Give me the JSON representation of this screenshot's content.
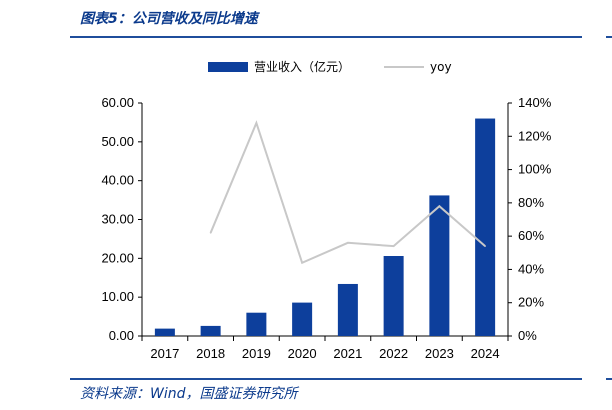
{
  "figure": {
    "title": "图表5：公司营收及同比增速",
    "source": "资料来源：Wind，国盛证券研究所"
  },
  "chart_data": {
    "type": "bar",
    "categories": [
      "2017",
      "2018",
      "2019",
      "2020",
      "2021",
      "2022",
      "2023",
      "2024"
    ],
    "series": [
      {
        "name": "营业收入（亿元）",
        "type": "bar",
        "axis": "left",
        "color": "#0d3f9c",
        "values": [
          1.9,
          2.6,
          6.0,
          8.6,
          13.4,
          20.6,
          36.2,
          56.0
        ]
      },
      {
        "name": "yoy",
        "type": "line",
        "axis": "right",
        "color": "#c8c8c8",
        "values": [
          null,
          0.62,
          1.28,
          0.44,
          0.56,
          0.54,
          0.78,
          0.54
        ]
      }
    ],
    "y_left": {
      "min": 0,
      "max": 60,
      "step": 10,
      "ticks": [
        "0.00",
        "10.00",
        "20.00",
        "30.00",
        "40.00",
        "50.00",
        "60.00"
      ]
    },
    "y_right": {
      "min": 0,
      "max": 1.4,
      "step": 0.2,
      "ticks": [
        "0%",
        "20%",
        "40%",
        "60%",
        "80%",
        "100%",
        "120%",
        "140%"
      ]
    },
    "grid": false,
    "legend_position": "top"
  }
}
